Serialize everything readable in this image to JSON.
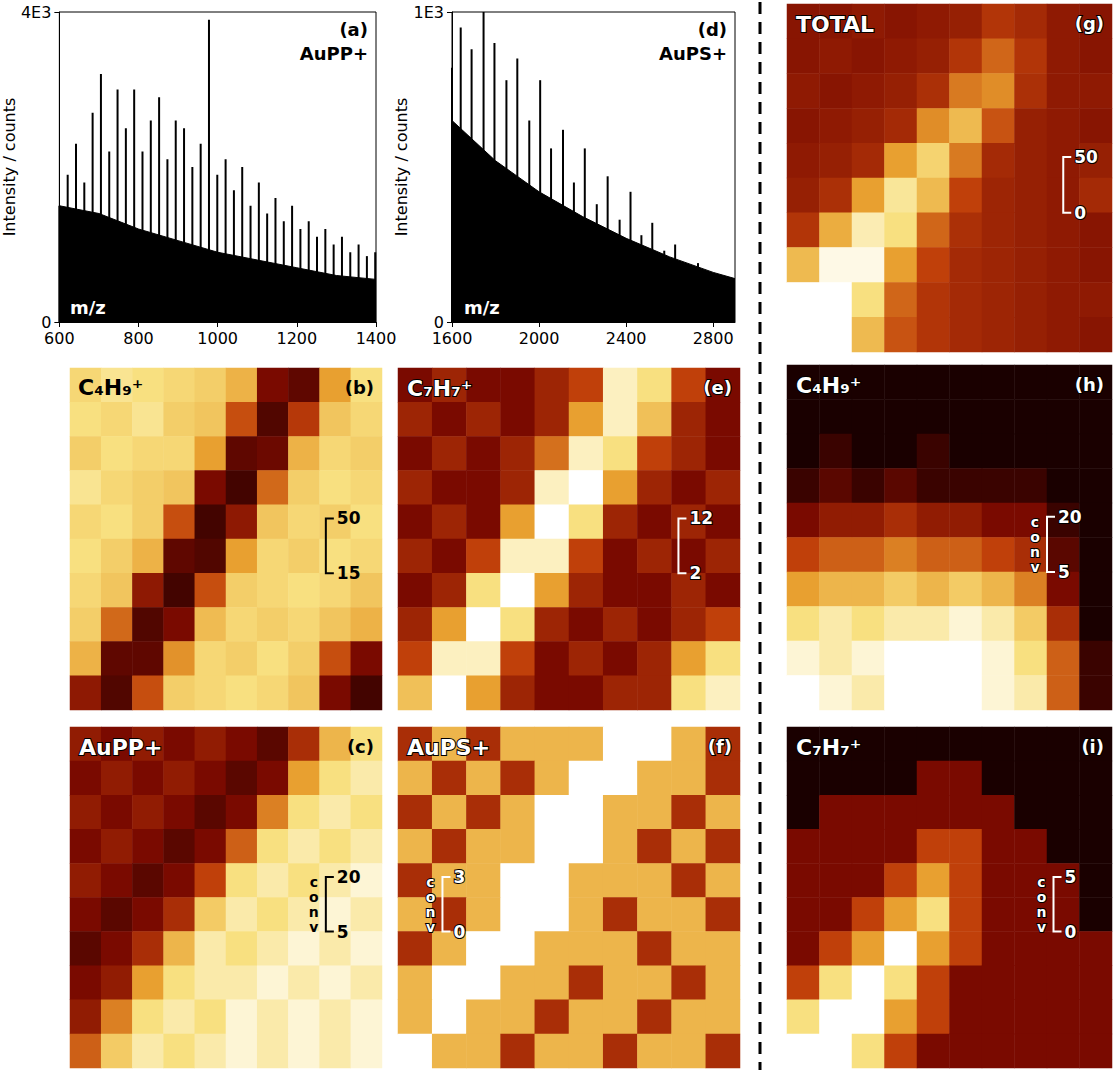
{
  "chart_data": [
    {
      "type": "bar",
      "panel": "(a)",
      "title": "AuPP+",
      "x_label": "m/z",
      "y_label": "Intensity / counts",
      "xlim": [
        600,
        1400
      ],
      "xticks": [
        600,
        800,
        1000,
        1200,
        1400
      ],
      "ylim": [
        0,
        4000
      ],
      "yticks": [
        0,
        {
          "value": 4000,
          "label": "4E3"
        }
      ],
      "series": [
        {
          "type": "line",
          "color": "#000000",
          "x": [
            600,
            700,
            800,
            900,
            1000,
            1100,
            1200,
            1300,
            1400
          ],
          "values": [
            1500,
            1400,
            1200,
            1050,
            900,
            800,
            700,
            600,
            550
          ]
        },
        {
          "type": "bar",
          "color": "#000000",
          "x": [
            600,
            621,
            642,
            663,
            684,
            705,
            726,
            747,
            768,
            789,
            810,
            831,
            852,
            873,
            894,
            915,
            936,
            957,
            978,
            999,
            1020,
            1041,
            1062,
            1083,
            1104,
            1125,
            1146,
            1167,
            1188,
            1209,
            1230,
            1251,
            1272,
            1293,
            1314,
            1335,
            1356,
            1377,
            1398
          ],
          "values": [
            1500,
            1900,
            2300,
            1800,
            2700,
            3200,
            2200,
            3000,
            2500,
            3000,
            2200,
            2600,
            2900,
            2100,
            2600,
            2500,
            2000,
            2300,
            3900,
            1900,
            2100,
            1700,
            2000,
            1500,
            1800,
            1400,
            1600,
            1300,
            1500,
            1200,
            1300,
            1100,
            1200,
            1000,
            1100,
            900,
            1000,
            850,
            900
          ]
        }
      ]
    },
    {
      "type": "bar",
      "panel": "(d)",
      "title": "AuPS+",
      "x_label": "m/z",
      "y_label": "Intensity / counts",
      "xlim": [
        1600,
        2900
      ],
      "xticks": [
        1600,
        2000,
        2400,
        2800
      ],
      "ylim": [
        0,
        1000
      ],
      "yticks": [
        0,
        {
          "value": 1000,
          "label": "1E3"
        }
      ],
      "series": [
        {
          "type": "line",
          "color": "#000000",
          "x": [
            1600,
            1800,
            2000,
            2200,
            2400,
            2600,
            2800,
            2900
          ],
          "values": [
            650,
            520,
            420,
            340,
            270,
            210,
            160,
            140
          ]
        },
        {
          "type": "bar",
          "color": "#000000",
          "x": [
            1600,
            1640,
            1690,
            1745,
            1795,
            1850,
            1900,
            1955,
            2005,
            2055,
            2110,
            2160,
            2210,
            2265,
            2315,
            2370,
            2420,
            2470,
            2520,
            2575,
            2625,
            2680,
            2730,
            2780,
            2830,
            2880
          ],
          "values": [
            820,
            950,
            880,
            1000,
            900,
            780,
            850,
            650,
            780,
            560,
            620,
            450,
            560,
            380,
            470,
            330,
            420,
            280,
            320,
            230,
            250,
            180,
            190,
            150,
            140,
            120
          ]
        }
      ]
    },
    {
      "type": "heatmap",
      "panel": "(b)",
      "title": "C₄H₉⁺",
      "color_range": [
        15,
        50
      ],
      "color_ticks": [
        15,
        50
      ],
      "cells": [
        [
          42,
          44,
          43,
          42,
          41,
          38,
          22,
          20,
          36,
          43
        ],
        [
          43,
          42,
          44,
          41,
          40,
          30,
          19,
          28,
          40,
          42
        ],
        [
          41,
          43,
          42,
          42,
          36,
          20,
          21,
          38,
          42,
          41
        ],
        [
          44,
          42,
          41,
          40,
          22,
          18,
          32,
          41,
          43,
          42
        ],
        [
          42,
          43,
          41,
          30,
          18,
          24,
          40,
          42,
          41,
          43
        ],
        [
          43,
          41,
          38,
          20,
          19,
          36,
          42,
          41,
          43,
          42
        ],
        [
          42,
          40,
          24,
          18,
          30,
          41,
          42,
          43,
          42,
          40
        ],
        [
          41,
          32,
          19,
          22,
          39,
          42,
          41,
          42,
          40,
          38
        ],
        [
          38,
          20,
          20,
          35,
          42,
          41,
          43,
          41,
          30,
          22
        ],
        [
          24,
          19,
          30,
          41,
          42,
          43,
          42,
          40,
          22,
          18
        ]
      ]
    },
    {
      "type": "heatmap",
      "panel": "(c)",
      "title": "AuPP+",
      "color_range": [
        5,
        20
      ],
      "color_ticks": [
        5,
        20
      ],
      "color_label": "conv",
      "cells": [
        [
          9,
          8,
          9,
          8,
          9,
          8,
          7,
          10,
          15,
          17
        ],
        [
          8,
          9,
          8,
          9,
          8,
          7,
          8,
          14,
          17,
          18
        ],
        [
          9,
          8,
          9,
          8,
          7,
          8,
          13,
          17,
          18,
          17
        ],
        [
          8,
          9,
          8,
          7,
          8,
          12,
          17,
          18,
          17,
          18
        ],
        [
          9,
          8,
          7,
          8,
          11,
          17,
          18,
          17,
          18,
          19
        ],
        [
          8,
          7,
          8,
          10,
          16,
          18,
          17,
          18,
          19,
          18
        ],
        [
          7,
          8,
          10,
          15,
          18,
          17,
          18,
          19,
          18,
          19
        ],
        [
          8,
          9,
          14,
          17,
          18,
          18,
          19,
          18,
          19,
          18
        ],
        [
          9,
          13,
          17,
          18,
          17,
          19,
          18,
          19,
          18,
          19
        ],
        [
          12,
          16,
          18,
          17,
          18,
          19,
          18,
          19,
          18,
          19
        ]
      ]
    },
    {
      "type": "heatmap",
      "panel": "(e)",
      "title": "C₇H₇⁺",
      "color_range": [
        2,
        12
      ],
      "color_ticks": [
        2,
        12
      ],
      "cells": [
        [
          4,
          5,
          4,
          4,
          5,
          6,
          11,
          10,
          6,
          4
        ],
        [
          5,
          4,
          5,
          4,
          5,
          8,
          11,
          9,
          5,
          4
        ],
        [
          4,
          5,
          4,
          5,
          7,
          11,
          10,
          6,
          5,
          4
        ],
        [
          5,
          4,
          4,
          5,
          11,
          12,
          8,
          5,
          4,
          5
        ],
        [
          4,
          5,
          4,
          8,
          12,
          10,
          5,
          4,
          5,
          4
        ],
        [
          5,
          4,
          6,
          11,
          11,
          6,
          4,
          5,
          4,
          5
        ],
        [
          4,
          5,
          10,
          12,
          8,
          5,
          4,
          4,
          5,
          4
        ],
        [
          5,
          8,
          12,
          10,
          5,
          4,
          5,
          4,
          5,
          6
        ],
        [
          6,
          11,
          11,
          6,
          4,
          5,
          4,
          5,
          8,
          10
        ],
        [
          9,
          12,
          8,
          5,
          4,
          4,
          5,
          5,
          10,
          11
        ]
      ]
    },
    {
      "type": "heatmap",
      "panel": "(f)",
      "title": "AuPS+",
      "color_range": [
        0,
        3
      ],
      "color_ticks": [
        0,
        3
      ],
      "color_label": "conv",
      "cells": [
        [
          1,
          2,
          1,
          2,
          2,
          2,
          3,
          3,
          2,
          1
        ],
        [
          2,
          1,
          2,
          1,
          2,
          3,
          3,
          2,
          2,
          1
        ],
        [
          1,
          2,
          1,
          2,
          3,
          3,
          2,
          2,
          1,
          2
        ],
        [
          2,
          1,
          2,
          2,
          3,
          3,
          2,
          1,
          2,
          1
        ],
        [
          1,
          2,
          2,
          3,
          3,
          2,
          2,
          2,
          1,
          2
        ],
        [
          2,
          1,
          2,
          3,
          3,
          2,
          1,
          2,
          2,
          1
        ],
        [
          1,
          2,
          3,
          3,
          2,
          2,
          2,
          1,
          2,
          2
        ],
        [
          2,
          3,
          3,
          2,
          2,
          1,
          2,
          2,
          1,
          2
        ],
        [
          2,
          3,
          2,
          2,
          1,
          2,
          2,
          1,
          2,
          2
        ],
        [
          3,
          2,
          2,
          1,
          2,
          2,
          1,
          2,
          2,
          1
        ]
      ]
    },
    {
      "type": "heatmap",
      "panel": "(g)",
      "title": "TOTAL",
      "color_range": [
        0,
        50
      ],
      "color_ticks": [
        0,
        50
      ],
      "cells": [
        [
          12,
          12,
          13,
          12,
          13,
          14,
          18,
          16,
          13,
          12
        ],
        [
          12,
          13,
          12,
          13,
          14,
          18,
          24,
          18,
          13,
          12
        ],
        [
          13,
          12,
          13,
          14,
          17,
          26,
          28,
          17,
          13,
          13
        ],
        [
          12,
          13,
          14,
          16,
          28,
          34,
          22,
          14,
          13,
          12
        ],
        [
          13,
          14,
          16,
          30,
          38,
          26,
          16,
          14,
          13,
          14
        ],
        [
          14,
          17,
          30,
          42,
          34,
          20,
          15,
          14,
          13,
          16
        ],
        [
          18,
          32,
          44,
          40,
          24,
          17,
          15,
          14,
          13,
          12
        ],
        [
          34,
          48,
          48,
          30,
          20,
          16,
          15,
          14,
          13,
          12
        ],
        [
          50,
          50,
          40,
          24,
          18,
          16,
          15,
          14,
          13,
          13
        ],
        [
          50,
          50,
          34,
          22,
          18,
          16,
          15,
          14,
          13,
          12
        ]
      ]
    },
    {
      "type": "heatmap",
      "panel": "(h)",
      "title": "C₄H₉⁺",
      "color_range": [
        5,
        20
      ],
      "color_ticks": [
        5,
        20
      ],
      "color_label": "conv",
      "cells": [
        [
          5,
          5,
          5,
          5,
          5,
          5,
          5,
          5,
          5,
          5
        ],
        [
          5,
          5,
          5,
          5,
          5,
          5,
          5,
          5,
          5,
          5
        ],
        [
          5,
          6,
          5,
          5,
          6,
          5,
          5,
          5,
          5,
          5
        ],
        [
          6,
          7,
          6,
          7,
          6,
          6,
          6,
          6,
          5,
          5
        ],
        [
          8,
          9,
          9,
          10,
          9,
          9,
          8,
          8,
          6,
          5
        ],
        [
          11,
          12,
          12,
          13,
          12,
          12,
          11,
          10,
          7,
          5
        ],
        [
          14,
          15,
          15,
          16,
          15,
          16,
          15,
          13,
          8,
          5
        ],
        [
          17,
          18,
          17,
          18,
          18,
          19,
          18,
          16,
          10,
          5
        ],
        [
          19,
          18,
          19,
          20,
          20,
          20,
          19,
          17,
          12,
          6
        ],
        [
          20,
          19,
          18,
          20,
          20,
          20,
          19,
          18,
          12,
          6
        ]
      ]
    },
    {
      "type": "heatmap",
      "panel": "(i)",
      "title": "C₇H₇⁺",
      "color_range": [
        0,
        5
      ],
      "color_ticks": [
        0,
        5
      ],
      "color_label": "conv",
      "cells": [
        [
          0,
          0,
          0,
          0,
          0,
          0,
          0,
          0,
          0,
          0
        ],
        [
          0,
          0,
          0,
          0,
          1,
          1,
          0,
          0,
          0,
          0
        ],
        [
          0,
          1,
          1,
          1,
          1,
          1,
          1,
          0,
          0,
          0
        ],
        [
          1,
          1,
          1,
          1,
          2,
          2,
          1,
          1,
          0,
          0
        ],
        [
          1,
          1,
          1,
          2,
          3,
          2,
          1,
          1,
          1,
          0
        ],
        [
          1,
          1,
          2,
          3,
          4,
          2,
          1,
          1,
          1,
          0
        ],
        [
          1,
          2,
          3,
          5,
          3,
          2,
          1,
          1,
          1,
          1
        ],
        [
          2,
          4,
          5,
          4,
          2,
          1,
          1,
          1,
          1,
          1
        ],
        [
          4,
          5,
          5,
          3,
          2,
          1,
          1,
          1,
          1,
          1
        ],
        [
          5,
          5,
          4,
          2,
          1,
          1,
          1,
          1,
          1,
          1
        ]
      ]
    }
  ]
}
